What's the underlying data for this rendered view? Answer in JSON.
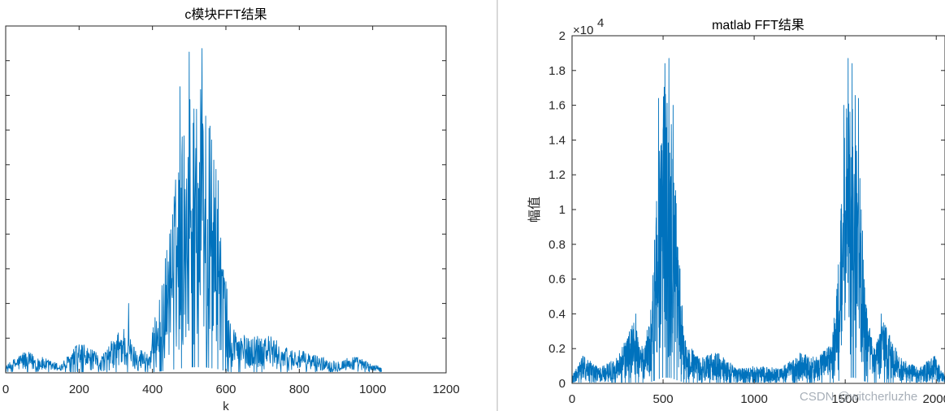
{
  "watermark": "CSDN @witcherluzhe",
  "chart_data": [
    {
      "type": "line",
      "title": "c模块FFT结果",
      "xlabel": "k",
      "ylabel": "",
      "xlim": [
        0,
        1200
      ],
      "ylim": [
        0,
        20000
      ],
      "xticks": [
        0,
        200,
        400,
        600,
        800,
        1000,
        1200
      ],
      "xtick_labels": [
        "0",
        "200",
        "400",
        "600",
        "800",
        "1000",
        "1200"
      ],
      "yticks": [
        0,
        2000,
        4000,
        6000,
        8000,
        10000,
        12000,
        14000,
        16000,
        18000,
        20000
      ],
      "ytick_labels_visible": false,
      "color": "#0072BD",
      "x_range": [
        1,
        1024
      ],
      "envelope": [
        {
          "x": 0,
          "y": 400
        },
        {
          "x": 50,
          "y": 1300
        },
        {
          "x": 100,
          "y": 900
        },
        {
          "x": 150,
          "y": 500
        },
        {
          "x": 200,
          "y": 1800
        },
        {
          "x": 260,
          "y": 1000
        },
        {
          "x": 320,
          "y": 2800
        },
        {
          "x": 350,
          "y": 1600
        },
        {
          "x": 390,
          "y": 1200
        },
        {
          "x": 430,
          "y": 6000
        },
        {
          "x": 480,
          "y": 14000
        },
        {
          "x": 510,
          "y": 17000
        },
        {
          "x": 540,
          "y": 17200
        },
        {
          "x": 580,
          "y": 11000
        },
        {
          "x": 610,
          "y": 3000
        },
        {
          "x": 660,
          "y": 2000
        },
        {
          "x": 700,
          "y": 2500
        },
        {
          "x": 760,
          "y": 1500
        },
        {
          "x": 820,
          "y": 1200
        },
        {
          "x": 900,
          "y": 700
        },
        {
          "x": 950,
          "y": 1000
        },
        {
          "x": 1024,
          "y": 300
        }
      ],
      "peaks": [
        {
          "x": 500,
          "y": 18500
        },
        {
          "x": 535,
          "y": 18700
        },
        {
          "x": 475,
          "y": 16500
        },
        {
          "x": 520,
          "y": 15200
        },
        {
          "x": 335,
          "y": 4000
        }
      ]
    },
    {
      "type": "line",
      "title": "matlab FFT结果",
      "xlabel": "",
      "ylabel": "幅值",
      "xlim": [
        0,
        2048
      ],
      "ylim": [
        0,
        20000
      ],
      "xticks": [
        0,
        500,
        1000,
        1500,
        2000
      ],
      "xtick_labels": [
        "0",
        "500",
        "1000",
        "1500",
        "2000"
      ],
      "yticks": [
        0,
        2000,
        4000,
        6000,
        8000,
        10000,
        12000,
        14000,
        16000,
        18000,
        20000
      ],
      "ytick_labels": [
        "0",
        "0.2",
        "0.4",
        "0.6",
        "0.8",
        "1",
        "1.2",
        "1.4",
        "1.6",
        "1.8",
        "2"
      ],
      "y_exponent_base": "×10",
      "y_exponent": "4",
      "color": "#0072BD",
      "x_range": [
        1,
        2048
      ],
      "envelope": [
        {
          "x": 0,
          "y": 400
        },
        {
          "x": 60,
          "y": 1600
        },
        {
          "x": 150,
          "y": 900
        },
        {
          "x": 250,
          "y": 1500
        },
        {
          "x": 340,
          "y": 3600
        },
        {
          "x": 390,
          "y": 2000
        },
        {
          "x": 430,
          "y": 4000
        },
        {
          "x": 470,
          "y": 12000
        },
        {
          "x": 500,
          "y": 17500
        },
        {
          "x": 540,
          "y": 17000
        },
        {
          "x": 580,
          "y": 9000
        },
        {
          "x": 620,
          "y": 2500
        },
        {
          "x": 700,
          "y": 1500
        },
        {
          "x": 800,
          "y": 1800
        },
        {
          "x": 900,
          "y": 900
        },
        {
          "x": 1024,
          "y": 1000
        },
        {
          "x": 1150,
          "y": 900
        },
        {
          "x": 1250,
          "y": 1800
        },
        {
          "x": 1350,
          "y": 1500
        },
        {
          "x": 1430,
          "y": 2500
        },
        {
          "x": 1470,
          "y": 9000
        },
        {
          "x": 1510,
          "y": 17000
        },
        {
          "x": 1550,
          "y": 17500
        },
        {
          "x": 1580,
          "y": 12000
        },
        {
          "x": 1620,
          "y": 4000
        },
        {
          "x": 1660,
          "y": 2000
        },
        {
          "x": 1710,
          "y": 3600
        },
        {
          "x": 1800,
          "y": 1500
        },
        {
          "x": 1900,
          "y": 900
        },
        {
          "x": 1990,
          "y": 1600
        },
        {
          "x": 2048,
          "y": 400
        }
      ],
      "peaks": [
        {
          "x": 532,
          "y": 18700
        },
        {
          "x": 510,
          "y": 18400
        },
        {
          "x": 475,
          "y": 16400
        },
        {
          "x": 555,
          "y": 16000
        },
        {
          "x": 1516,
          "y": 18700
        },
        {
          "x": 1538,
          "y": 18400
        },
        {
          "x": 1573,
          "y": 16400
        },
        {
          "x": 1493,
          "y": 16000
        },
        {
          "x": 350,
          "y": 4000
        },
        {
          "x": 1698,
          "y": 4000
        }
      ]
    }
  ]
}
